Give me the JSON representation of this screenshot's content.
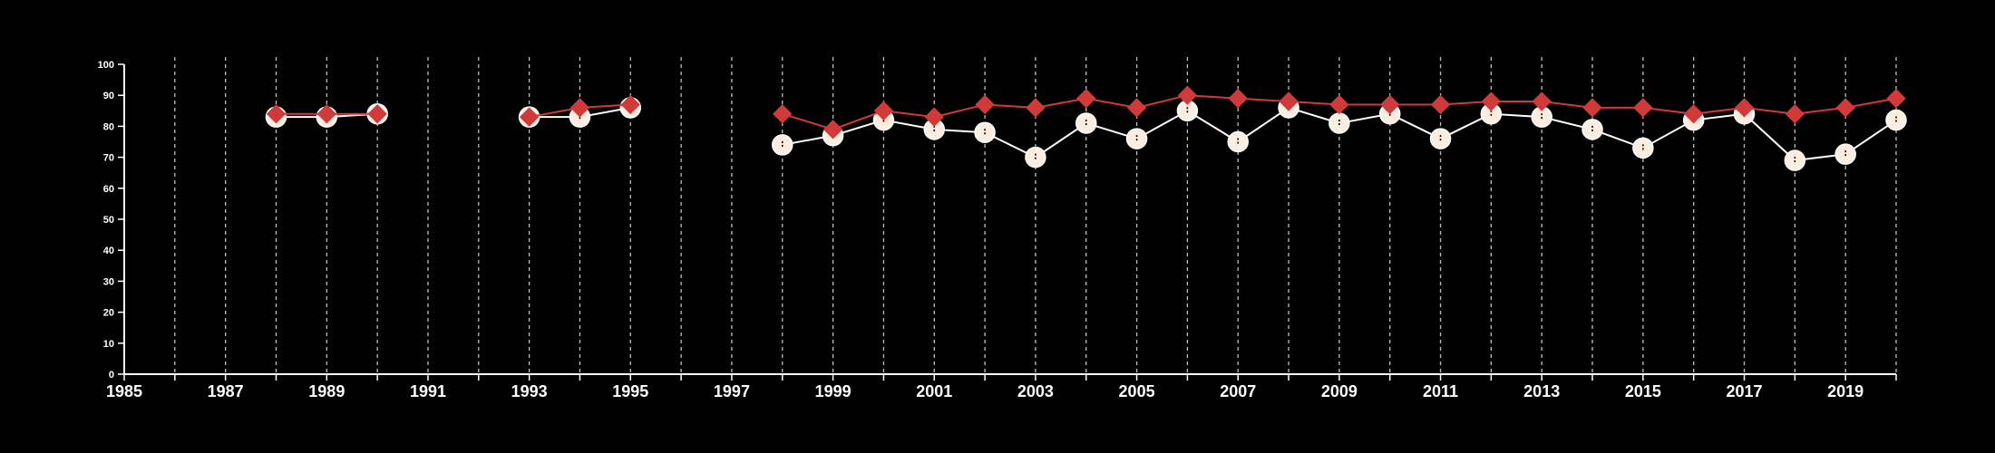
{
  "chart_data": {
    "type": "line",
    "title": "",
    "xlabel": "",
    "ylabel": "",
    "xlim": [
      1985,
      2020
    ],
    "ylim": [
      0,
      100
    ],
    "y_ticks": [
      0,
      10,
      20,
      30,
      40,
      50,
      60,
      70,
      80,
      90,
      100
    ],
    "x_ticks": [
      1985,
      1987,
      1989,
      1991,
      1993,
      1995,
      1997,
      1999,
      2001,
      2003,
      2005,
      2007,
      2009,
      2011,
      2013,
      2015,
      2017,
      2019
    ],
    "grid": "vertical dashed lines at every year",
    "legend": "none",
    "background_color": "#000000",
    "axis_color": "#ffffff",
    "series": [
      {
        "marker": "circle",
        "color": "#fbeee0",
        "line_color": "#ffffff",
        "segments": [
          {
            "x": [
              1988,
              1989,
              1990
            ],
            "y": [
              83,
              83,
              84
            ]
          },
          {
            "x": [
              1993,
              1994,
              1995
            ],
            "y": [
              83,
              83,
              86
            ]
          },
          {
            "x": [
              1998,
              1999,
              2000,
              2001,
              2002,
              2003,
              2004,
              2005,
              2006,
              2007,
              2008,
              2009,
              2010,
              2011,
              2012,
              2013,
              2014,
              2015,
              2016,
              2017,
              2018,
              2019,
              2020
            ],
            "y": [
              74,
              77,
              82,
              79,
              78,
              70,
              81,
              76,
              85,
              75,
              86,
              81,
              84,
              76,
              84,
              83,
              79,
              73,
              82,
              84,
              69,
              71,
              82
            ]
          }
        ]
      },
      {
        "marker": "diamond",
        "color": "#d03a3a",
        "line_color": "#d03a3a",
        "segments": [
          {
            "x": [
              1988,
              1989,
              1990
            ],
            "y": [
              84,
              84,
              84
            ]
          },
          {
            "x": [
              1993,
              1994,
              1995
            ],
            "y": [
              83,
              86,
              87
            ]
          },
          {
            "x": [
              1998,
              1999,
              2000,
              2001,
              2002,
              2003,
              2004,
              2005,
              2006,
              2007,
              2008,
              2009,
              2010,
              2011,
              2012,
              2013,
              2014,
              2015,
              2016,
              2017,
              2018,
              2019,
              2020
            ],
            "y": [
              84,
              79,
              85,
              83,
              87,
              86,
              89,
              86,
              90,
              89,
              88,
              87,
              87,
              87,
              88,
              88,
              86,
              86,
              84,
              86,
              84,
              86,
              89
            ]
          }
        ]
      }
    ]
  }
}
